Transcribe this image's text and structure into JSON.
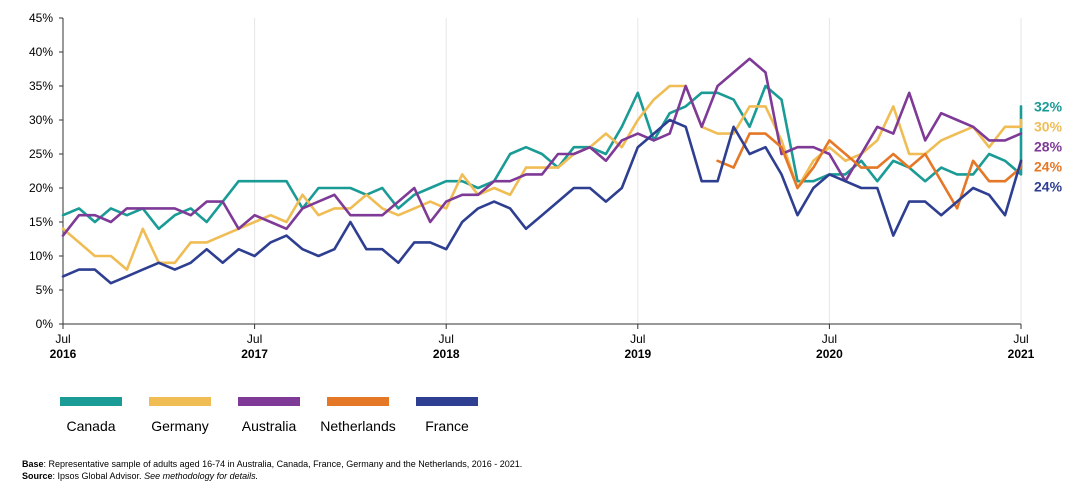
{
  "chart_data": {
    "type": "line",
    "title": "",
    "xlabel": "",
    "ylabel": "",
    "ylim": [
      0,
      45
    ],
    "yticks": [
      "0%",
      "5%",
      "10%",
      "15%",
      "20%",
      "25%",
      "30%",
      "35%",
      "40%",
      "45%"
    ],
    "grid": "vertical",
    "legend_position": "bottom",
    "x_start": "2016-07",
    "x_end": "2021-07",
    "x_ticks": [
      {
        "month": "Jul",
        "year": "2016",
        "date": "2016-07"
      },
      {
        "month": "Jul",
        "year": "2017",
        "date": "2017-07"
      },
      {
        "month": "Jul",
        "year": "2018",
        "date": "2018-07"
      },
      {
        "month": "Jul",
        "year": "2019",
        "date": "2019-07"
      },
      {
        "month": "Jul",
        "year": "2020",
        "date": "2020-07"
      },
      {
        "month": "Jul",
        "year": "2021",
        "date": "2021-07"
      }
    ],
    "series": [
      {
        "name": "Canada",
        "color": "#1a9b96",
        "end_label": "32%",
        "points": [
          [
            "2016-07",
            16
          ],
          [
            "2016-08",
            17
          ],
          [
            "2016-09",
            15
          ],
          [
            "2016-10",
            17
          ],
          [
            "2016-11",
            16
          ],
          [
            "2016-12",
            17
          ],
          [
            "2017-01",
            14
          ],
          [
            "2017-02",
            16
          ],
          [
            "2017-03",
            17
          ],
          [
            "2017-04",
            15
          ],
          [
            "2017-05",
            18
          ],
          [
            "2017-06",
            21
          ],
          [
            "2017-07",
            21
          ],
          [
            "2017-08",
            21
          ],
          [
            "2017-09",
            21
          ],
          [
            "2017-10",
            17
          ],
          [
            "2017-11",
            20
          ],
          [
            "2017-12",
            20
          ],
          [
            "2018-01",
            20
          ],
          [
            "2018-02",
            19
          ],
          [
            "2018-03",
            20
          ],
          [
            "2018-04",
            17
          ],
          [
            "2018-05",
            19
          ],
          [
            "2018-06",
            20
          ],
          [
            "2018-07",
            21
          ],
          [
            "2018-08",
            21
          ],
          [
            "2018-09",
            20
          ],
          [
            "2018-10",
            21
          ],
          [
            "2018-11",
            25
          ],
          [
            "2018-12",
            26
          ],
          [
            "2019-01",
            25
          ],
          [
            "2019-02",
            23
          ],
          [
            "2019-03",
            26
          ],
          [
            "2019-04",
            26
          ],
          [
            "2019-05",
            25
          ],
          [
            "2019-06",
            29
          ],
          [
            "2019-07",
            34
          ],
          [
            "2019-08",
            27
          ],
          [
            "2019-09",
            31
          ],
          [
            "2019-10",
            32
          ],
          [
            "2019-11",
            34
          ],
          [
            "2019-12",
            34
          ],
          [
            "2020-01",
            33
          ],
          [
            "2020-02",
            29
          ],
          [
            "2020-03",
            35
          ],
          [
            "2020-04",
            33
          ],
          [
            "2020-05",
            21
          ],
          [
            "2020-06",
            21
          ],
          [
            "2020-07",
            22
          ],
          [
            "2020-08",
            22
          ],
          [
            "2020-09",
            24
          ],
          [
            "2020-10",
            21
          ],
          [
            "2020-11",
            24
          ],
          [
            "2020-12",
            23
          ],
          [
            "2021-01",
            21
          ],
          [
            "2021-02",
            23
          ],
          [
            "2021-03",
            22
          ],
          [
            "2021-04",
            22
          ],
          [
            "2021-05",
            25
          ],
          [
            "2021-06",
            24
          ],
          [
            "2021-07",
            22
          ],
          [
            "2021-07",
            32
          ]
        ]
      },
      {
        "name": "Germany",
        "color": "#f0bd55",
        "end_label": "30%",
        "points": [
          [
            "2016-07",
            14
          ],
          [
            "2016-08",
            12
          ],
          [
            "2016-09",
            10
          ],
          [
            "2016-10",
            10
          ],
          [
            "2016-11",
            8
          ],
          [
            "2016-12",
            14
          ],
          [
            "2017-01",
            9
          ],
          [
            "2017-02",
            9
          ],
          [
            "2017-03",
            12
          ],
          [
            "2017-04",
            12
          ],
          [
            "2017-05",
            13
          ],
          [
            "2017-06",
            14
          ],
          [
            "2017-07",
            15
          ],
          [
            "2017-08",
            16
          ],
          [
            "2017-09",
            15
          ],
          [
            "2017-10",
            19
          ],
          [
            "2017-11",
            16
          ],
          [
            "2017-12",
            17
          ],
          [
            "2018-01",
            17
          ],
          [
            "2018-02",
            19
          ],
          [
            "2018-03",
            17
          ],
          [
            "2018-04",
            16
          ],
          [
            "2018-05",
            17
          ],
          [
            "2018-06",
            18
          ],
          [
            "2018-07",
            17
          ],
          [
            "2018-08",
            22
          ],
          [
            "2018-09",
            19
          ],
          [
            "2018-10",
            20
          ],
          [
            "2018-11",
            19
          ],
          [
            "2018-12",
            23
          ],
          [
            "2019-01",
            23
          ],
          [
            "2019-02",
            23
          ],
          [
            "2019-03",
            25
          ],
          [
            "2019-04",
            26
          ],
          [
            "2019-05",
            28
          ],
          [
            "2019-06",
            26
          ],
          [
            "2019-07",
            30
          ],
          [
            "2019-08",
            33
          ],
          [
            "2019-09",
            35
          ],
          [
            "2019-10",
            35
          ],
          [
            "2019-11",
            29
          ],
          [
            "2019-12",
            28
          ],
          [
            "2020-01",
            28
          ],
          [
            "2020-02",
            32
          ],
          [
            "2020-03",
            32
          ],
          [
            "2020-04",
            27
          ],
          [
            "2020-05",
            20
          ],
          [
            "2020-06",
            24
          ],
          [
            "2020-07",
            26
          ],
          [
            "2020-08",
            24
          ],
          [
            "2020-09",
            25
          ],
          [
            "2020-10",
            27
          ],
          [
            "2020-11",
            32
          ],
          [
            "2020-12",
            25
          ],
          [
            "2021-01",
            25
          ],
          [
            "2021-02",
            27
          ],
          [
            "2021-03",
            28
          ],
          [
            "2021-04",
            29
          ],
          [
            "2021-05",
            26
          ],
          [
            "2021-06",
            29
          ],
          [
            "2021-07",
            29
          ],
          [
            "2021-07",
            30
          ]
        ]
      },
      {
        "name": "Australia",
        "color": "#7e3a96",
        "end_label": "28%",
        "points": [
          [
            "2016-07",
            13
          ],
          [
            "2016-08",
            16
          ],
          [
            "2016-09",
            16
          ],
          [
            "2016-10",
            15
          ],
          [
            "2016-11",
            17
          ],
          [
            "2016-12",
            17
          ],
          [
            "2017-01",
            17
          ],
          [
            "2017-02",
            17
          ],
          [
            "2017-03",
            16
          ],
          [
            "2017-04",
            18
          ],
          [
            "2017-05",
            18
          ],
          [
            "2017-06",
            14
          ],
          [
            "2017-07",
            16
          ],
          [
            "2017-08",
            15
          ],
          [
            "2017-09",
            14
          ],
          [
            "2017-10",
            17
          ],
          [
            "2017-11",
            18
          ],
          [
            "2017-12",
            19
          ],
          [
            "2018-01",
            16
          ],
          [
            "2018-02",
            16
          ],
          [
            "2018-03",
            16
          ],
          [
            "2018-04",
            18
          ],
          [
            "2018-05",
            20
          ],
          [
            "2018-06",
            15
          ],
          [
            "2018-07",
            18
          ],
          [
            "2018-08",
            19
          ],
          [
            "2018-09",
            19
          ],
          [
            "2018-10",
            21
          ],
          [
            "2018-11",
            21
          ],
          [
            "2018-12",
            22
          ],
          [
            "2019-01",
            22
          ],
          [
            "2019-02",
            25
          ],
          [
            "2019-03",
            25
          ],
          [
            "2019-04",
            26
          ],
          [
            "2019-05",
            24
          ],
          [
            "2019-06",
            27
          ],
          [
            "2019-07",
            28
          ],
          [
            "2019-08",
            27
          ],
          [
            "2019-09",
            28
          ],
          [
            "2019-10",
            35
          ],
          [
            "2019-11",
            29
          ],
          [
            "2019-12",
            35
          ],
          [
            "2020-01",
            37
          ],
          [
            "2020-02",
            39
          ],
          [
            "2020-03",
            37
          ],
          [
            "2020-04",
            25
          ],
          [
            "2020-05",
            26
          ],
          [
            "2020-06",
            26
          ],
          [
            "2020-07",
            25
          ],
          [
            "2020-08",
            21
          ],
          [
            "2020-09",
            25
          ],
          [
            "2020-10",
            29
          ],
          [
            "2020-11",
            28
          ],
          [
            "2020-12",
            34
          ],
          [
            "2021-01",
            27
          ],
          [
            "2021-02",
            31
          ],
          [
            "2021-03",
            30
          ],
          [
            "2021-04",
            29
          ],
          [
            "2021-05",
            27
          ],
          [
            "2021-06",
            27
          ],
          [
            "2021-07",
            28
          ]
        ]
      },
      {
        "name": "Netherlands",
        "color": "#e57826",
        "end_label": "24%",
        "points": [
          [
            "2019-12",
            24
          ],
          [
            "2020-01",
            23
          ],
          [
            "2020-02",
            28
          ],
          [
            "2020-03",
            28
          ],
          [
            "2020-04",
            26
          ],
          [
            "2020-05",
            20
          ],
          [
            "2020-06",
            23
          ],
          [
            "2020-07",
            27
          ],
          [
            "2020-08",
            25
          ],
          [
            "2020-09",
            23
          ],
          [
            "2020-10",
            23
          ],
          [
            "2020-11",
            25
          ],
          [
            "2020-12",
            23
          ],
          [
            "2021-01",
            25
          ],
          [
            "2021-02",
            21
          ],
          [
            "2021-03",
            17
          ],
          [
            "2021-04",
            24
          ],
          [
            "2021-05",
            21
          ],
          [
            "2021-06",
            21
          ],
          [
            "2021-07",
            23
          ],
          [
            "2021-07",
            24
          ]
        ]
      },
      {
        "name": "France",
        "color": "#2e3f91",
        "end_label": "24%",
        "points": [
          [
            "2016-07",
            7
          ],
          [
            "2016-08",
            8
          ],
          [
            "2016-09",
            8
          ],
          [
            "2016-10",
            6
          ],
          [
            "2016-11",
            7
          ],
          [
            "2016-12",
            8
          ],
          [
            "2017-01",
            9
          ],
          [
            "2017-02",
            8
          ],
          [
            "2017-03",
            9
          ],
          [
            "2017-04",
            11
          ],
          [
            "2017-05",
            9
          ],
          [
            "2017-06",
            11
          ],
          [
            "2017-07",
            10
          ],
          [
            "2017-08",
            12
          ],
          [
            "2017-09",
            13
          ],
          [
            "2017-10",
            11
          ],
          [
            "2017-11",
            10
          ],
          [
            "2017-12",
            11
          ],
          [
            "2018-01",
            15
          ],
          [
            "2018-02",
            11
          ],
          [
            "2018-03",
            11
          ],
          [
            "2018-04",
            9
          ],
          [
            "2018-05",
            12
          ],
          [
            "2018-06",
            12
          ],
          [
            "2018-07",
            11
          ],
          [
            "2018-08",
            15
          ],
          [
            "2018-09",
            17
          ],
          [
            "2018-10",
            18
          ],
          [
            "2018-11",
            17
          ],
          [
            "2018-12",
            14
          ],
          [
            "2019-01",
            16
          ],
          [
            "2019-02",
            18
          ],
          [
            "2019-03",
            20
          ],
          [
            "2019-04",
            20
          ],
          [
            "2019-05",
            18
          ],
          [
            "2019-06",
            20
          ],
          [
            "2019-07",
            26
          ],
          [
            "2019-08",
            28
          ],
          [
            "2019-09",
            30
          ],
          [
            "2019-10",
            29
          ],
          [
            "2019-11",
            21
          ],
          [
            "2019-12",
            21
          ],
          [
            "2020-01",
            29
          ],
          [
            "2020-02",
            25
          ],
          [
            "2020-03",
            26
          ],
          [
            "2020-04",
            22
          ],
          [
            "2020-05",
            16
          ],
          [
            "2020-06",
            20
          ],
          [
            "2020-07",
            22
          ],
          [
            "2020-08",
            21
          ],
          [
            "2020-09",
            20
          ],
          [
            "2020-10",
            20
          ],
          [
            "2020-11",
            13
          ],
          [
            "2020-12",
            18
          ],
          [
            "2021-01",
            18
          ],
          [
            "2021-02",
            16
          ],
          [
            "2021-03",
            18
          ],
          [
            "2021-04",
            20
          ],
          [
            "2021-05",
            19
          ],
          [
            "2021-06",
            16
          ],
          [
            "2021-07",
            24
          ]
        ]
      }
    ]
  },
  "footnotes": {
    "base_label": "Base",
    "base_text": ": Representative sample of adults aged 16-74 in Australia, Canada, France, Germany and the Netherlands, 2016 - 2021.",
    "source_label": "Source",
    "source_text": ": Ipsos Global Advisor. ",
    "source_italic": "See methodology for details."
  }
}
